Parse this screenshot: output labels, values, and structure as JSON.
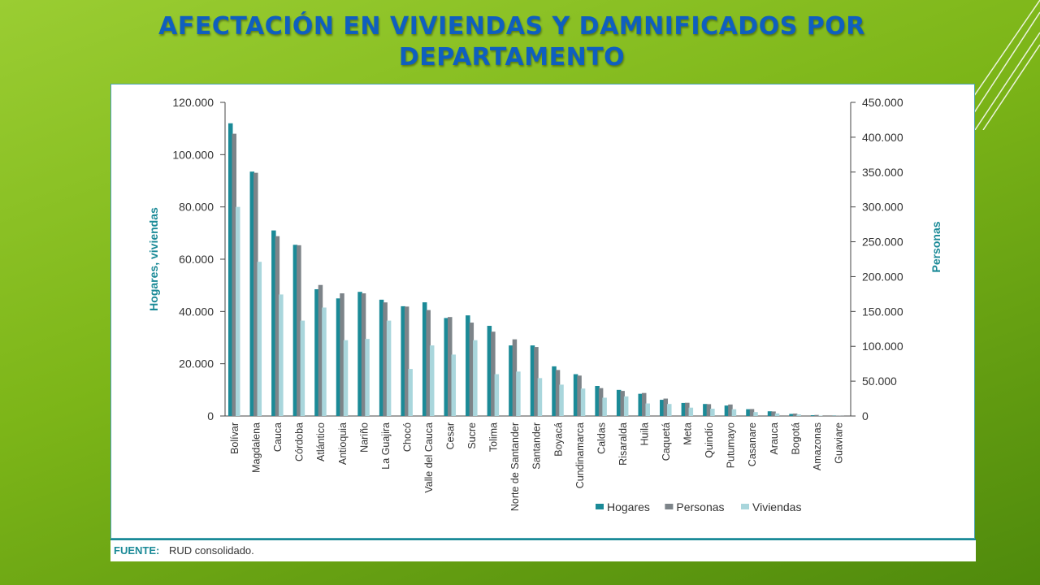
{
  "slide": {
    "title": "AFECTACIÓN EN VIVIENDAS Y DAMNIFICADOS POR DEPARTAMENTO",
    "source_label": "FUENTE:",
    "source_text": "RUD consolidado."
  },
  "colors": {
    "hogares": "#1b8a97",
    "personas": "#7d8489",
    "viviendas": "#a9d6dc",
    "axis_title": "#1b8a97",
    "title": "#0f5fbf"
  },
  "chart_data": {
    "type": "bar",
    "title": "",
    "ylabel": "Hogares, viviendas",
    "y2label": "Personas",
    "ylim": [
      0,
      120000
    ],
    "y2lim": [
      0,
      450000
    ],
    "yticks": [
      0,
      20000,
      40000,
      60000,
      80000,
      100000,
      120000
    ],
    "ytick_labels": [
      "0",
      "20.000",
      "40.000",
      "60.000",
      "80.000",
      "100.000",
      "120.000"
    ],
    "y2ticks": [
      0,
      50000,
      100000,
      150000,
      200000,
      250000,
      300000,
      350000,
      400000,
      450000
    ],
    "y2tick_labels": [
      "0",
      "50.000",
      "100.000",
      "150.000",
      "200.000",
      "250.000",
      "300.000",
      "350.000",
      "400.000",
      "450.000"
    ],
    "legend_position": "bottom-right",
    "grid": false,
    "categories": [
      "Bolívar",
      "Magdalena",
      "Cauca",
      "Córdoba",
      "Atlántico",
      "Antioquia",
      "Nariño",
      "La Guajira",
      "Chocó",
      "Valle del Cauca",
      "Cesar",
      "Sucre",
      "Tolima",
      "Norte de Santander",
      "Santander",
      "Boyacá",
      "Cundinamarca",
      "Caldas",
      "Risaralda",
      "Huila",
      "Caquetá",
      "Meta",
      "Quindío",
      "Putumayo",
      "Casanare",
      "Arauca",
      "Bogotá",
      "Amazonas",
      "Guaviare"
    ],
    "series": [
      {
        "name": "Hogares",
        "axis": "left",
        "values": [
          112000,
          93500,
          71000,
          65500,
          48500,
          45000,
          47500,
          44500,
          42000,
          43500,
          37500,
          38500,
          34500,
          27000,
          27000,
          19000,
          16000,
          11500,
          10000,
          8500,
          6200,
          5000,
          4600,
          4000,
          2600,
          1800,
          800,
          300,
          100
        ]
      },
      {
        "name": "Personas",
        "axis": "right",
        "values": [
          405000,
          349000,
          258000,
          245000,
          188000,
          176000,
          176000,
          163000,
          157000,
          152000,
          142000,
          134000,
          121000,
          110000,
          99000,
          66000,
          58000,
          40000,
          36000,
          33000,
          25000,
          19000,
          17000,
          16500,
          10000,
          6500,
          3500,
          1500,
          600
        ]
      },
      {
        "name": "Viviendas",
        "axis": "left",
        "values": [
          80000,
          59000,
          46500,
          36500,
          41500,
          29000,
          29500,
          36500,
          18000,
          27000,
          23500,
          29000,
          16000,
          17000,
          14500,
          12000,
          10500,
          7000,
          7500,
          4800,
          4600,
          3200,
          2800,
          2600,
          1500,
          1000,
          600,
          150,
          50
        ]
      }
    ]
  }
}
